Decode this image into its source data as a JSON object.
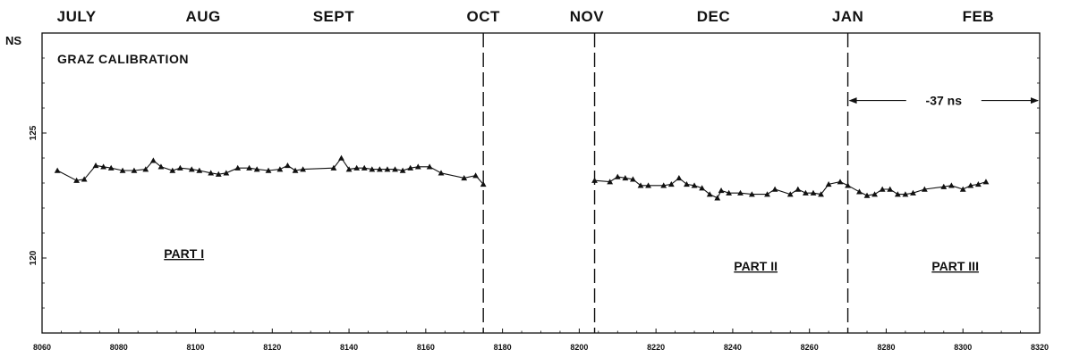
{
  "chart_data": {
    "type": "line",
    "title": "GRAZ CALIBRATION",
    "ylabel": "NS",
    "xlim": [
      8060,
      8320
    ],
    "ylim": [
      117,
      129
    ],
    "grid": false,
    "x_ticks": [
      8060,
      8080,
      8100,
      8120,
      8140,
      8160,
      8180,
      8200,
      8220,
      8240,
      8260,
      8280,
      8300,
      8320
    ],
    "x_tick_labels": [
      "8060",
      "8080",
      "8100",
      "8120",
      "8140",
      "8160",
      "8180",
      "8200",
      "8220",
      "8240",
      "8260",
      "8280",
      "8300",
      "8320"
    ],
    "y_ticks": [
      120,
      125
    ],
    "y_tick_labels": [
      "120",
      "125"
    ],
    "months": [
      {
        "label": "JULY",
        "x": 8069
      },
      {
        "label": "AUG",
        "x": 8102
      },
      {
        "label": "SEPT",
        "x": 8136
      },
      {
        "label": "OCT",
        "x": 8175
      },
      {
        "label": "NOV",
        "x": 8202
      },
      {
        "label": "DEC",
        "x": 8235
      },
      {
        "label": "JAN",
        "x": 8270
      },
      {
        "label": "FEB",
        "x": 8304
      }
    ],
    "dividers": [
      8175,
      8204,
      8270
    ],
    "parts": [
      {
        "label": "PART I",
        "x": 8097,
        "y": 120
      },
      {
        "label": "PART II",
        "x": 8246,
        "y": 119.5
      },
      {
        "label": "PART III",
        "x": 8298,
        "y": 119.5
      }
    ],
    "annotation": {
      "label": "-37 ns",
      "x_start": 8270,
      "x_end": 8320,
      "y": 126.3
    },
    "series": [
      {
        "x": [
          8064,
          8069,
          8071,
          8074,
          8076,
          8078,
          8081,
          8084,
          8087,
          8089,
          8091,
          8094,
          8096,
          8099,
          8101,
          8104,
          8106,
          8108,
          8111,
          8114,
          8116,
          8119,
          8122,
          8124,
          8126,
          8128,
          8136,
          8138,
          8140,
          8142,
          8144,
          8146,
          8148,
          8150,
          8152,
          8154,
          8156,
          8158,
          8161,
          8164,
          8170,
          8173,
          8175
        ],
        "values": [
          123.5,
          123.1,
          123.15,
          123.7,
          123.65,
          123.6,
          123.5,
          123.5,
          123.55,
          123.9,
          123.65,
          123.5,
          123.6,
          123.55,
          123.5,
          123.4,
          123.35,
          123.4,
          123.6,
          123.6,
          123.55,
          123.5,
          123.55,
          123.7,
          123.5,
          123.55,
          123.6,
          124.0,
          123.55,
          123.6,
          123.6,
          123.55,
          123.55,
          123.55,
          123.55,
          123.5,
          123.6,
          123.65,
          123.65,
          123.4,
          123.2,
          123.3,
          122.95
        ]
      },
      {
        "x": [
          8204,
          8208,
          8210,
          8212,
          8214,
          8216,
          8218,
          8222,
          8224,
          8226,
          8228,
          8230,
          8232,
          8234,
          8236,
          8237,
          8239,
          8242,
          8245,
          8249,
          8251,
          8255,
          8257,
          8259,
          8261,
          8263,
          8265,
          8268,
          8270,
          8273,
          8275,
          8277,
          8279,
          8281,
          8283,
          8285,
          8287,
          8290,
          8295,
          8297,
          8300,
          8302,
          8304,
          8306
        ],
        "values": [
          123.1,
          123.05,
          123.25,
          123.2,
          123.15,
          122.9,
          122.9,
          122.9,
          122.95,
          123.2,
          122.95,
          122.9,
          122.8,
          122.55,
          122.4,
          122.7,
          122.6,
          122.6,
          122.55,
          122.55,
          122.75,
          122.55,
          122.75,
          122.6,
          122.6,
          122.55,
          122.95,
          123.05,
          122.9,
          122.65,
          122.5,
          122.55,
          122.75,
          122.75,
          122.55,
          122.55,
          122.6,
          122.75,
          122.85,
          122.9,
          122.75,
          122.9,
          122.95,
          123.05
        ]
      }
    ]
  }
}
